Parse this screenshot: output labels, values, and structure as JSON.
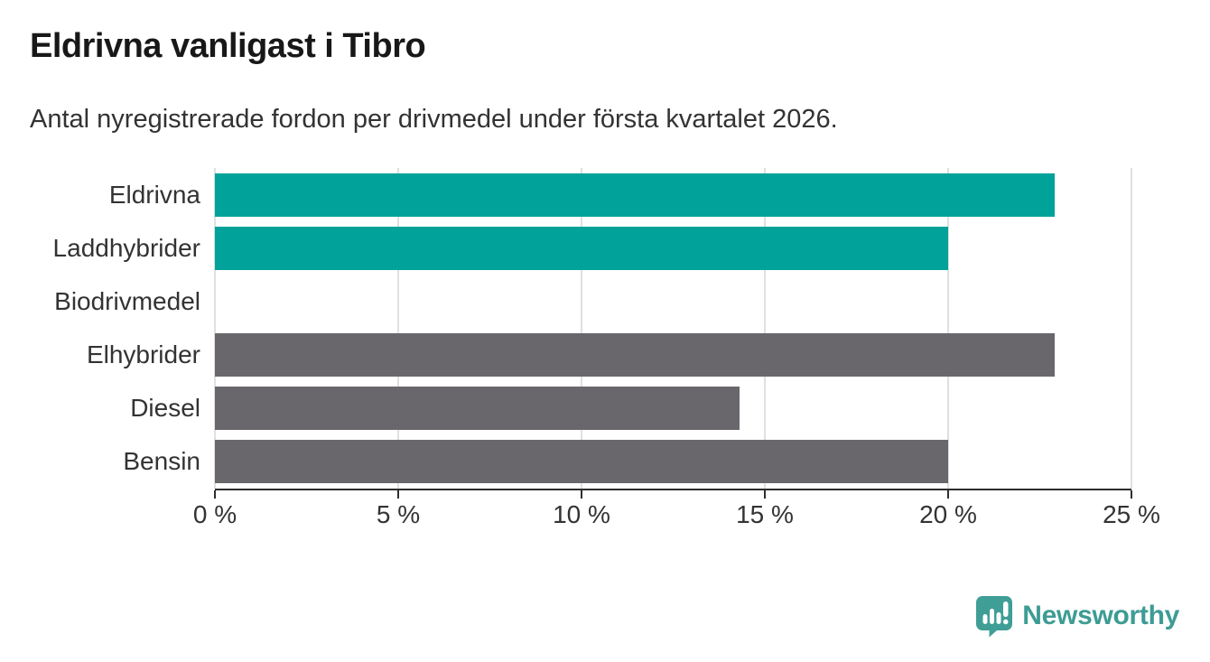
{
  "header": {
    "title": "Eldrivna vanligast i Tibro",
    "subtitle": "Antal nyregistrerade fordon per drivmedel under första kvartalet 2026."
  },
  "chart_data": {
    "type": "bar",
    "orientation": "horizontal",
    "title": "Eldrivna vanligast i Tibro",
    "subtitle": "Antal nyregistrerade fordon per drivmedel under första kvartalet 2026.",
    "categories": [
      "Eldrivna",
      "Laddhybrider",
      "Biodrivmedel",
      "Elhybrider",
      "Diesel",
      "Bensin"
    ],
    "values": [
      22.9,
      20,
      0,
      22.9,
      14.3,
      20
    ],
    "unit": "%",
    "bar_colors": [
      "#00a29a",
      "#00a29a",
      "#6a676c",
      "#6a676c",
      "#6a676c",
      "#6a676c"
    ],
    "highlight_color": "#00a29a",
    "base_color": "#6a676c",
    "xlim": [
      0,
      25
    ],
    "xticks": {
      "values": [
        0,
        5,
        10,
        15,
        20,
        25
      ],
      "labels": [
        "0 %",
        "5 %",
        "10 %",
        "15 %",
        "20 %",
        "25 %"
      ]
    },
    "grid": true,
    "gridline_color": "#e0e0e0",
    "axis_color": "#2e2e2e",
    "legend": false
  },
  "footer": {
    "brand": "Newsworthy",
    "brand_color": "#3d9c94",
    "icon_color": "#3f9e96",
    "icon": "newsworthy-logo-icon"
  }
}
